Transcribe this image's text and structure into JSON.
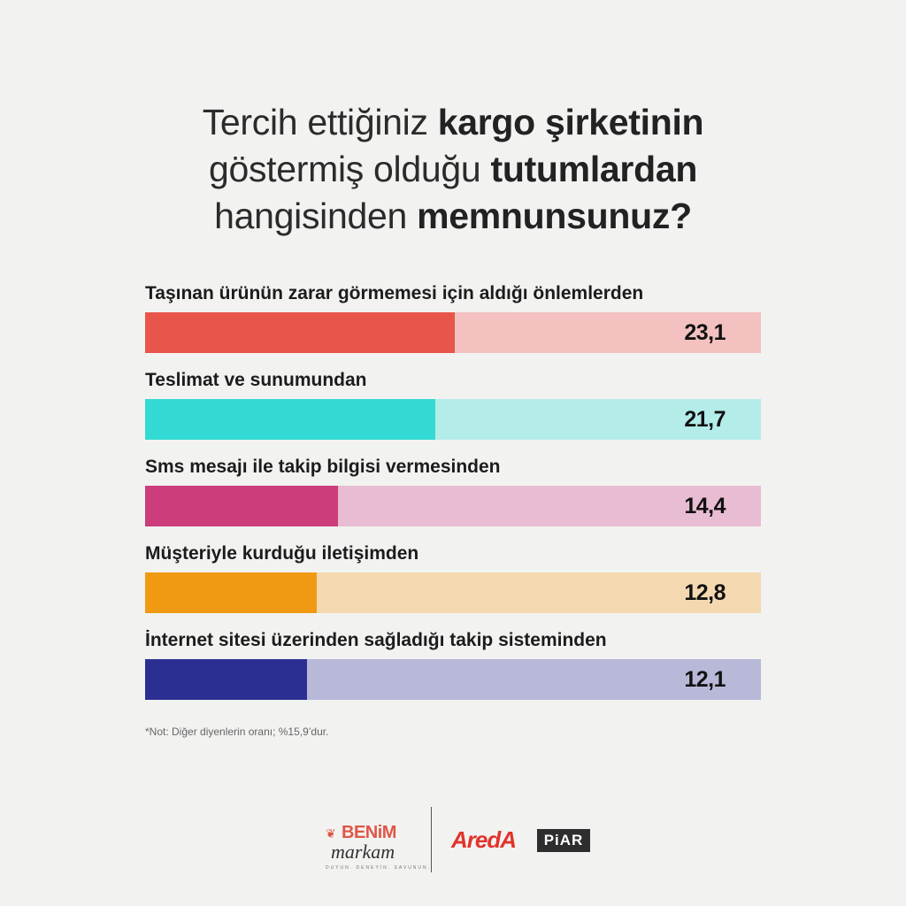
{
  "title": {
    "line1": [
      {
        "text": "Tercih ettiğiniz ",
        "bold": false
      },
      {
        "text": "kargo şirketinin",
        "bold": true
      }
    ],
    "line2": [
      {
        "text": "göstermiş olduğu ",
        "bold": false
      },
      {
        "text": "tutumlardan",
        "bold": true
      }
    ],
    "line3": [
      {
        "text": "hangisinden ",
        "bold": false
      },
      {
        "text": "memnunsunuz?",
        "bold": true
      }
    ]
  },
  "chart_data": {
    "type": "bar",
    "orientation": "horizontal",
    "categories": [
      "Taşınan ürünün zarar görmemesi için aldığı önlemlerden",
      "Teslimat ve sunumundan",
      "Sms mesajı ile takip bilgisi vermesinden",
      "Müşteriyle kurduğu iletişimden",
      "İnternet sitesi üzerinden sağladığı takip sisteminden"
    ],
    "values": [
      23.1,
      21.7,
      14.4,
      12.8,
      12.1
    ],
    "value_labels": [
      "23,1",
      "21,7",
      "14,4",
      "12,8",
      "12,1"
    ],
    "colors": [
      "#e8554a",
      "#33dad3",
      "#cb3d7b",
      "#f09a14",
      "#2b2f92"
    ],
    "track_colors": [
      "#f2c1c0",
      "#b4ecea",
      "#e8bcd2",
      "#f4d9b0",
      "#b8b9d8"
    ],
    "xlim": [
      0,
      46
    ],
    "grid": false
  },
  "note": "*Not: Diğer diyenlerin oranı; %15,9’dur.",
  "footer": {
    "benim_word": "BENiM",
    "markam_word": "markam",
    "benim_tagline": "DUYUN. DENEYİN. SAVUNUN.",
    "areda_word": "AredA",
    "piar_word": "PiAR"
  }
}
